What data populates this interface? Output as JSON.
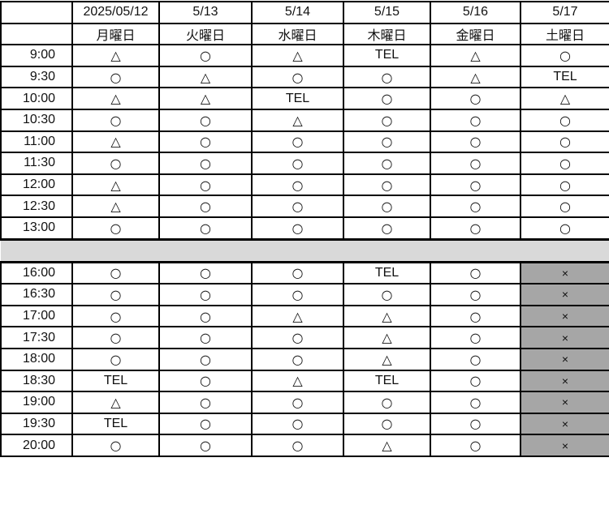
{
  "header": {
    "dates": [
      "",
      "2025/05/12",
      "5/13",
      "5/14",
      "5/15",
      "5/16",
      "5/17"
    ],
    "weekdays": [
      "",
      "月曜日",
      "火曜日",
      "水曜日",
      "木曜日",
      "金曜日",
      "土曜日"
    ]
  },
  "colors": {
    "separator": "#d9d9d9",
    "closed": "#a6a6a6"
  },
  "morning": [
    {
      "time": "9:00",
      "slots": [
        "△",
        "○",
        "△",
        "TEL",
        "△",
        "○"
      ]
    },
    {
      "time": "9:30",
      "slots": [
        "○",
        "△",
        "○",
        "○",
        "△",
        "TEL"
      ]
    },
    {
      "time": "10:00",
      "slots": [
        "△",
        "△",
        "TEL",
        "○",
        "○",
        "△"
      ]
    },
    {
      "time": "10:30",
      "slots": [
        "○",
        "○",
        "△",
        "○",
        "○",
        "○"
      ]
    },
    {
      "time": "11:00",
      "slots": [
        "△",
        "○",
        "○",
        "○",
        "○",
        "○"
      ]
    },
    {
      "time": "11:30",
      "slots": [
        "○",
        "○",
        "○",
        "○",
        "○",
        "○"
      ]
    },
    {
      "time": "12:00",
      "slots": [
        "△",
        "○",
        "○",
        "○",
        "○",
        "○"
      ]
    },
    {
      "time": "12:30",
      "slots": [
        "△",
        "○",
        "○",
        "○",
        "○",
        "○"
      ]
    },
    {
      "time": "13:00",
      "slots": [
        "○",
        "○",
        "○",
        "○",
        "○",
        "○"
      ]
    }
  ],
  "evening": [
    {
      "time": "16:00",
      "slots": [
        "○",
        "○",
        "○",
        "TEL",
        "○",
        "×"
      ]
    },
    {
      "time": "16:30",
      "slots": [
        "○",
        "○",
        "○",
        "○",
        "○",
        "×"
      ]
    },
    {
      "time": "17:00",
      "slots": [
        "○",
        "○",
        "△",
        "△",
        "○",
        "×"
      ]
    },
    {
      "time": "17:30",
      "slots": [
        "○",
        "○",
        "○",
        "△",
        "○",
        "×"
      ]
    },
    {
      "time": "18:00",
      "slots": [
        "○",
        "○",
        "○",
        "△",
        "○",
        "×"
      ]
    },
    {
      "time": "18:30",
      "slots": [
        "TEL",
        "○",
        "△",
        "TEL",
        "○",
        "×"
      ]
    },
    {
      "time": "19:00",
      "slots": [
        "△",
        "○",
        "○",
        "○",
        "○",
        "×"
      ]
    },
    {
      "time": "19:30",
      "slots": [
        "TEL",
        "○",
        "○",
        "○",
        "○",
        "×"
      ]
    },
    {
      "time": "20:00",
      "slots": [
        "○",
        "○",
        "○",
        "△",
        "○",
        "×"
      ]
    }
  ]
}
